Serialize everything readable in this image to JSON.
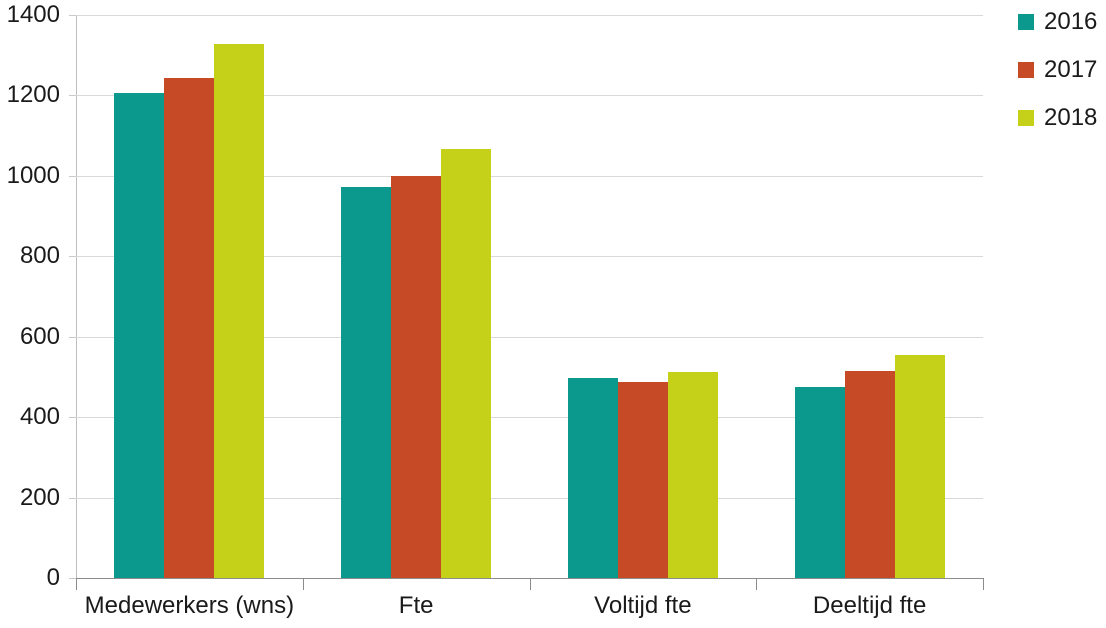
{
  "chart_data": {
    "type": "bar",
    "title": "",
    "xlabel": "",
    "ylabel": "",
    "categories": [
      "Medewerkers (wns)",
      "Fte",
      "Voltijd fte",
      "Deeltijd fte"
    ],
    "series": [
      {
        "name": "2016",
        "color": "#0a998c",
        "values": [
          1207,
          973,
          498,
          475
        ]
      },
      {
        "name": "2017",
        "color": "#c74a27",
        "values": [
          1243,
          1000,
          487,
          515
        ]
      },
      {
        "name": "2018",
        "color": "#c4d118",
        "values": [
          1328,
          1068,
          512,
          554
        ]
      }
    ],
    "ylim": [
      0,
      1400
    ],
    "yticks": [
      0,
      200,
      400,
      600,
      800,
      1000,
      1200,
      1400
    ],
    "grid": true,
    "legend_position": "right-top"
  },
  "style": {
    "background_color": "#ffffff",
    "gridline_color": "#d9d9d9",
    "x_axis_color": "#8c8c8c",
    "y_axis_color": "#bfbfbf",
    "text_color": "#1a1a1a"
  }
}
